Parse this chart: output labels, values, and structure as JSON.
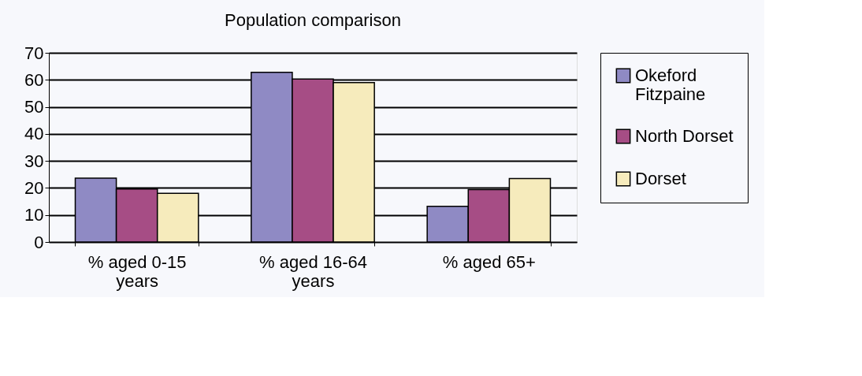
{
  "chart_data": {
    "type": "bar",
    "title": "Population comparison",
    "categories": [
      "% aged 0-15 years",
      "% aged 16-64 years",
      "% aged 65+"
    ],
    "series": [
      {
        "name": "Okeford Fitzpaine",
        "color": "#8f8ac4",
        "values": [
          23.6,
          62.8,
          13.2
        ]
      },
      {
        "name": "North Dorset",
        "color": "#a64d85",
        "values": [
          19.6,
          60.3,
          19.4
        ]
      },
      {
        "name": "Dorset",
        "color": "#f6ebbc",
        "values": [
          18.0,
          59.0,
          23.5
        ]
      }
    ],
    "ylim": [
      0,
      70
    ],
    "yticks": [
      0,
      10,
      20,
      30,
      40,
      50,
      60,
      70
    ],
    "grid": "y",
    "legend": "right"
  }
}
